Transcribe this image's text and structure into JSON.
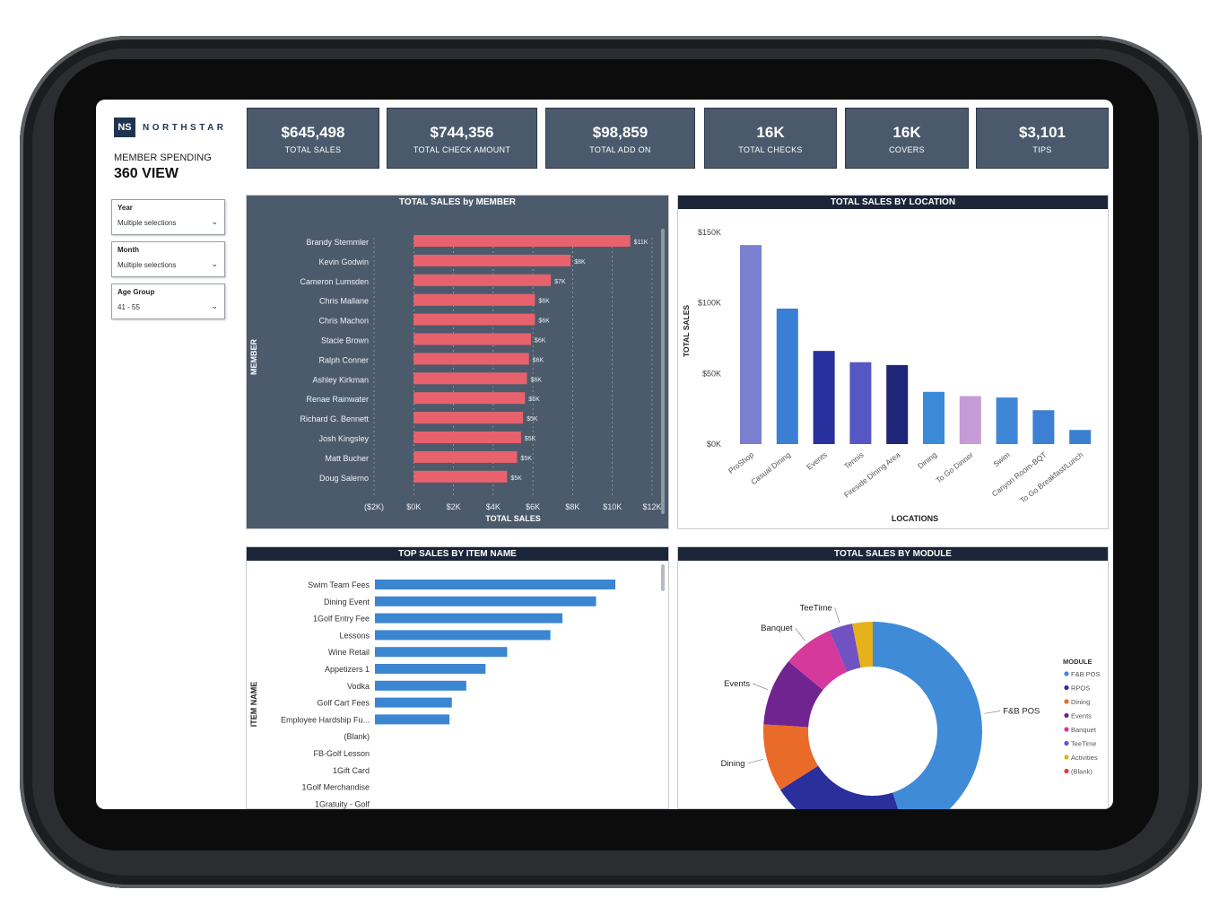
{
  "brand": {
    "logo_mark": "NS",
    "name": "NORTHSTAR"
  },
  "header": {
    "subtitle": "MEMBER SPENDING",
    "title": "360 VIEW"
  },
  "slicers": [
    {
      "title": "Year",
      "value": "Multiple selections"
    },
    {
      "title": "Month",
      "value": "Multiple selections"
    },
    {
      "title": "Age Group",
      "value": "41 - 55"
    }
  ],
  "kpis": [
    {
      "value": "$645,498",
      "label": "TOTAL SALES"
    },
    {
      "value": "$744,356",
      "label": "TOTAL CHECK AMOUNT"
    },
    {
      "value": "$98,859",
      "label": "TOTAL ADD ON"
    },
    {
      "value": "16K",
      "label": "TOTAL CHECKS"
    },
    {
      "value": "16K",
      "label": "COVERS"
    },
    {
      "value": "$3,101",
      "label": "TIPS"
    }
  ],
  "colors": {
    "kpi_bg": "#4a5a6c",
    "header_bg": "#1a2538",
    "member_bar": "#e8626d",
    "item_bar": "#3a86d1"
  },
  "chart_data": [
    {
      "type": "bar",
      "orientation": "horizontal",
      "title": "TOTAL SALES by MEMBER",
      "xlabel": "TOTAL SALES",
      "ylabel": "MEMBER",
      "categories": [
        "Brandy Stemmler",
        "Kevin Godwin",
        "Cameron Lumsden",
        "Chris Mallane",
        "Chris Machon",
        "Stacie Brown",
        "Ralph Conner",
        "Ashley Kirkman",
        "Renae Rainwater",
        "Richard G. Bennett",
        "Josh Kingsley",
        "Matt Bucher",
        "Doug Salerno"
      ],
      "values": [
        10900,
        7900,
        6900,
        6100,
        6100,
        5900,
        5800,
        5700,
        5600,
        5500,
        5400,
        5200,
        4700
      ],
      "data_labels": [
        "$11K",
        "$8K",
        "$7K",
        "$6K",
        "$6K",
        "$6K",
        "$6K",
        "$6K",
        "$6K",
        "$5K",
        "$5K",
        "$5K",
        "$5K"
      ],
      "xlim": [
        -2000,
        12000
      ],
      "xticks": [
        "($2K)",
        "$0K",
        "$2K",
        "$4K",
        "$6K",
        "$8K",
        "$10K",
        "$12K"
      ],
      "grid": true
    },
    {
      "type": "bar",
      "title": "TOTAL SALES BY LOCATION",
      "xlabel": "LOCATIONS",
      "ylabel": "TOTAL SALES",
      "categories": [
        "ProShop",
        "Casual Dining",
        "Events",
        "Tennis",
        "Fireside Dining Area",
        "Dining",
        "To Go Dinner",
        "Swim",
        "Canyon Room-BQT",
        "To Go Breakfast/Lunch"
      ],
      "values": [
        141000,
        96000,
        66000,
        58000,
        56000,
        37000,
        34000,
        33000,
        24000,
        10000
      ],
      "bar_colors": [
        "#7b7fcf",
        "#3b7fd4",
        "#28309e",
        "#5557c4",
        "#1f2578",
        "#3b8ad8",
        "#c79ad8",
        "#3f86d6",
        "#3d7fd2",
        "#3b7fd0"
      ],
      "ylim": [
        0,
        150000
      ],
      "yticks": [
        "$0K",
        "$50K",
        "$100K",
        "$150K"
      ]
    },
    {
      "type": "bar",
      "orientation": "horizontal",
      "title": "TOP SALES BY ITEM NAME",
      "ylabel": "ITEM NAME",
      "categories": [
        "Swim Team Fees",
        "Dining Event",
        "1Golf Entry Fee",
        "Lessons",
        "Wine Retail",
        "Appetizers 1",
        "Vodka",
        "Golf Cart Fees",
        "Employee Hardship Fu...",
        "(Blank)",
        "FB-Golf Lesson",
        "1Gift Card",
        "1Golf Merchandise",
        "1Gratuity - Golf"
      ],
      "values": [
        100,
        92,
        78,
        73,
        55,
        46,
        38,
        32,
        31,
        0,
        0,
        0,
        0,
        0
      ]
    },
    {
      "type": "pie",
      "variant": "donut",
      "title": "TOTAL SALES BY MODULE",
      "legend_title": "MODULE",
      "categories": [
        "F&B POS",
        "RPOS",
        "Dining",
        "Events",
        "Banquet",
        "TeeTime",
        "Activities",
        "(Blank)"
      ],
      "values": [
        45.0,
        21.0,
        10.0,
        10.0,
        7.5,
        3.5,
        3.0,
        0.0
      ],
      "colors": [
        "#3f8bd8",
        "#2a2f9c",
        "#ea6a2a",
        "#6f2490",
        "#d6399c",
        "#7052c2",
        "#e6b21c",
        "#e43a3a"
      ],
      "slice_labels": [
        "F&B POS",
        "",
        "Dining",
        "Events",
        "Banquet",
        "TeeTime",
        "",
        ""
      ],
      "legend_position": "right"
    }
  ]
}
